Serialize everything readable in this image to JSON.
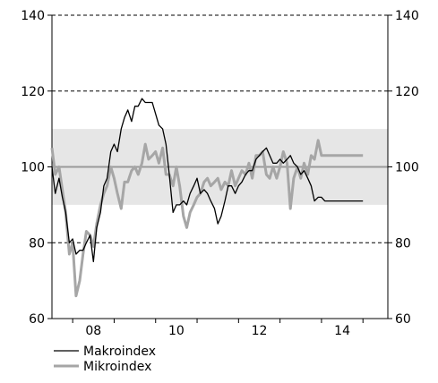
{
  "chart_data": {
    "type": "line",
    "title": "",
    "xlabel": "",
    "ylabel": "",
    "xlim": [
      2007.5,
      2015.6
    ],
    "ylim": [
      60,
      140
    ],
    "y_ticks": [
      60,
      80,
      100,
      120,
      140
    ],
    "y_tick_labels": [
      "60",
      "80",
      "100",
      "120",
      "140"
    ],
    "x_ticks": [
      2008,
      2010,
      2012,
      2014
    ],
    "x_tick_labels": [
      "08",
      "10",
      "12",
      "14"
    ],
    "secondary_y_axis": true,
    "gridlines": "dashed horizontal at 80 and 120, outer border dashed at 60 and 140",
    "reference_band": {
      "from": 90,
      "to": 110
    },
    "reference_line": 100,
    "legend_position": "bottom-left",
    "colors": {
      "makro": "#000000",
      "mikro": "#a6a6a6",
      "band": "#e6e6e6",
      "refline": "#999999"
    },
    "series": [
      {
        "name": "Makroindex",
        "x": [
          2007.5,
          2007.58,
          2007.67,
          2007.75,
          2007.83,
          2007.92,
          2008.0,
          2008.08,
          2008.17,
          2008.25,
          2008.33,
          2008.42,
          2008.5,
          2008.58,
          2008.67,
          2008.75,
          2008.83,
          2008.92,
          2009.0,
          2009.08,
          2009.17,
          2009.25,
          2009.33,
          2009.42,
          2009.5,
          2009.58,
          2009.67,
          2009.75,
          2009.83,
          2009.92,
          2010.0,
          2010.08,
          2010.17,
          2010.25,
          2010.33,
          2010.42,
          2010.5,
          2010.58,
          2010.67,
          2010.75,
          2010.83,
          2010.92,
          2011.0,
          2011.08,
          2011.17,
          2011.25,
          2011.33,
          2011.42,
          2011.5,
          2011.58,
          2011.67,
          2011.75,
          2011.83,
          2011.92,
          2012.0,
          2012.08,
          2012.17,
          2012.25,
          2012.33,
          2012.42,
          2012.5,
          2012.58,
          2012.67,
          2012.75,
          2012.83,
          2012.92,
          2013.0,
          2013.08,
          2013.17,
          2013.25,
          2013.33,
          2013.42,
          2013.5,
          2013.58,
          2013.67,
          2013.75,
          2013.83,
          2013.92,
          2014.0,
          2014.08,
          2014.17,
          2014.25,
          2014.33,
          2014.42,
          2014.5,
          2014.58,
          2014.67,
          2014.75,
          2014.83,
          2014.92,
          2015.0
        ],
        "values": [
          100,
          93,
          97,
          92,
          88,
          80,
          81,
          77,
          78,
          78,
          80,
          82,
          75,
          84,
          88,
          95,
          97,
          104,
          106,
          104,
          110,
          113,
          115,
          112,
          116,
          116,
          118,
          117,
          117,
          117,
          114,
          111,
          110,
          106,
          98,
          88,
          90,
          90,
          91,
          90,
          93,
          95,
          97,
          93,
          94,
          93,
          91,
          89,
          85,
          87,
          91,
          95,
          95,
          93,
          95,
          96,
          98,
          99,
          99,
          102,
          103,
          104,
          105,
          103,
          101,
          101,
          102,
          101,
          102,
          103,
          101,
          100,
          98,
          99,
          97,
          95,
          91,
          92,
          92,
          91,
          91,
          91,
          91,
          91,
          91,
          91,
          91,
          91,
          91,
          91,
          91
        ]
      },
      {
        "name": "Mikroindex",
        "x": [
          2007.5,
          2007.58,
          2007.67,
          2007.75,
          2007.83,
          2007.92,
          2008.0,
          2008.08,
          2008.17,
          2008.25,
          2008.33,
          2008.42,
          2008.5,
          2008.58,
          2008.67,
          2008.75,
          2008.83,
          2008.92,
          2009.0,
          2009.08,
          2009.17,
          2009.25,
          2009.33,
          2009.42,
          2009.5,
          2009.58,
          2009.67,
          2009.75,
          2009.83,
          2009.92,
          2010.0,
          2010.08,
          2010.17,
          2010.25,
          2010.33,
          2010.42,
          2010.5,
          2010.58,
          2010.67,
          2010.75,
          2010.83,
          2010.92,
          2011.0,
          2011.08,
          2011.17,
          2011.25,
          2011.33,
          2011.42,
          2011.5,
          2011.58,
          2011.67,
          2011.75,
          2011.83,
          2011.92,
          2012.0,
          2012.08,
          2012.17,
          2012.25,
          2012.33,
          2012.42,
          2012.5,
          2012.58,
          2012.67,
          2012.75,
          2012.83,
          2012.92,
          2013.0,
          2013.08,
          2013.17,
          2013.25,
          2013.33,
          2013.42,
          2013.5,
          2013.58,
          2013.67,
          2013.75,
          2013.83,
          2013.92,
          2014.0,
          2014.08,
          2014.17,
          2014.25,
          2014.33,
          2014.42,
          2014.5,
          2014.58,
          2014.67,
          2014.75,
          2014.83,
          2014.92,
          2015.0
        ],
        "values": [
          105,
          98,
          100,
          94,
          88,
          77,
          80,
          66,
          70,
          77,
          83,
          82,
          79,
          85,
          90,
          93,
          95,
          100,
          97,
          93,
          89,
          96,
          96,
          99,
          100,
          98,
          101,
          106,
          102,
          103,
          104,
          101,
          105,
          98,
          98,
          95,
          100,
          95,
          87,
          84,
          88,
          90,
          92,
          93,
          96,
          97,
          95,
          96,
          97,
          94,
          96,
          95,
          99,
          95,
          97,
          99,
          98,
          101,
          97,
          103,
          103,
          104,
          98,
          97,
          100,
          97,
          100,
          104,
          101,
          89,
          97,
          100,
          97,
          101,
          98,
          103,
          102,
          107,
          103,
          103,
          103,
          103,
          103,
          103,
          103,
          103,
          103,
          103,
          103,
          103,
          103
        ]
      }
    ]
  }
}
